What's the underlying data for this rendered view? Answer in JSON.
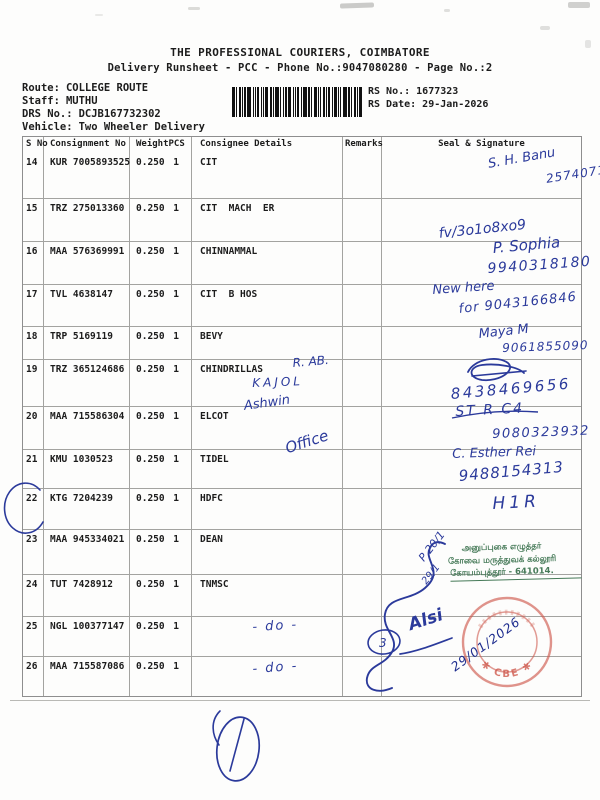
{
  "header": {
    "title": "THE PROFESSIONAL COURIERS, COIMBATORE",
    "subtitle": "Delivery Runsheet - PCC - Phone No.:9047080280 - Page No.:2"
  },
  "meta": {
    "route_label": "Route:",
    "route_value": "COLLEGE ROUTE",
    "staff_label": "Staff:",
    "staff_value": "MUTHU",
    "drs_label": "DRS No.:",
    "drs_value": "DCJB167732302",
    "vehicle_label": "Vehicle:",
    "vehicle_value": "Two Wheeler Delivery",
    "rs_no": "RS No.: 1677323",
    "rs_date": "RS Date: 29-Jan-2026"
  },
  "table": {
    "headers": {
      "sno": "S No",
      "consignment": "Consignment No",
      "weight": "Weight",
      "pcs": "PCS",
      "consignee": "Consignee Details",
      "remarks": "Remarks",
      "seal": "Seal & Signature"
    },
    "rows": [
      {
        "sno": "14",
        "consignment": "KUR 7005893525",
        "weight": "0.250",
        "pcs": "1",
        "consignee": "CIT"
      },
      {
        "sno": "15",
        "consignment": "TRZ 275013360",
        "weight": "0.250",
        "pcs": "1",
        "consignee": "CIT  MACH  ER"
      },
      {
        "sno": "16",
        "consignment": "MAA 576369991",
        "weight": "0.250",
        "pcs": "1",
        "consignee": "CHINNAMMAL"
      },
      {
        "sno": "17",
        "consignment": "TVL 4638147",
        "weight": "0.250",
        "pcs": "1",
        "consignee": "CIT  B HOS"
      },
      {
        "sno": "18",
        "consignment": "TRP 5169119",
        "weight": "0.250",
        "pcs": "1",
        "consignee": "BEVY"
      },
      {
        "sno": "19",
        "consignment": "TRZ 365124686",
        "weight": "0.250",
        "pcs": "1",
        "consignee": "CHINDRILLAS"
      },
      {
        "sno": "20",
        "consignment": "MAA 715586304",
        "weight": "0.250",
        "pcs": "1",
        "consignee": "ELCOT"
      },
      {
        "sno": "21",
        "consignment": "KMU 1030523",
        "weight": "0.250",
        "pcs": "1",
        "consignee": "TIDEL"
      },
      {
        "sno": "22",
        "consignment": "KTG 7204239",
        "weight": "0.250",
        "pcs": "1",
        "consignee": "HDFC"
      },
      {
        "sno": "23",
        "consignment": "MAA 945334021",
        "weight": "0.250",
        "pcs": "1",
        "consignee": "DEAN"
      },
      {
        "sno": "24",
        "consignment": "TUT 7428912",
        "weight": "0.250",
        "pcs": "1",
        "consignee": "TNMSC"
      },
      {
        "sno": "25",
        "consignment": "NGL 100377147",
        "weight": "0.250",
        "pcs": "1",
        "consignee": ""
      },
      {
        "sno": "26",
        "consignment": "MAA 715587086",
        "weight": "0.250",
        "pcs": "1",
        "consignee": ""
      }
    ]
  },
  "ink": {
    "sig14_name": "S. H. Banu",
    "sig14_num": "2574071",
    "sig15": "fv/3o1o8xo9",
    "sig16_name": "P. Sophia",
    "sig16_num": "9940318180",
    "sig17_line1": "New here",
    "sig17_line2": "for 9043166846",
    "sig18_name": "Maya M",
    "sig18_num": "9061855090",
    "sig19_num": "8438469656",
    "hw19_a": "R. AB.",
    "hw19_b": "KAJOL",
    "hw20_name": "Ashwin",
    "sig20_scr": "ST R C4",
    "sig20_num": "9080323932",
    "hw21_office": "Office",
    "sig21_name": "C. Esther Rei",
    "sig21_num": "9488154313",
    "sig22": "H1R",
    "hw23_a": "P 20/1",
    "hw23_b": "29/1",
    "circle25_num": "3",
    "sig25_name": "Alsi",
    "sig25_date": "29/01/2026",
    "ditto25": "- do -",
    "ditto26": "- do -",
    "ink_color": "#2b3a9b"
  },
  "stamps": {
    "green": {
      "line1": "அனுப்புகை எழுத்தர்",
      "line2": "கோவை மருத்துவக் கல்லூரி",
      "line3": "கோயம்புத்தூர் - 641014.",
      "color": "#467a58"
    },
    "red": {
      "text": "✱ CBE ✱",
      "color": "#cf5a4e"
    }
  }
}
